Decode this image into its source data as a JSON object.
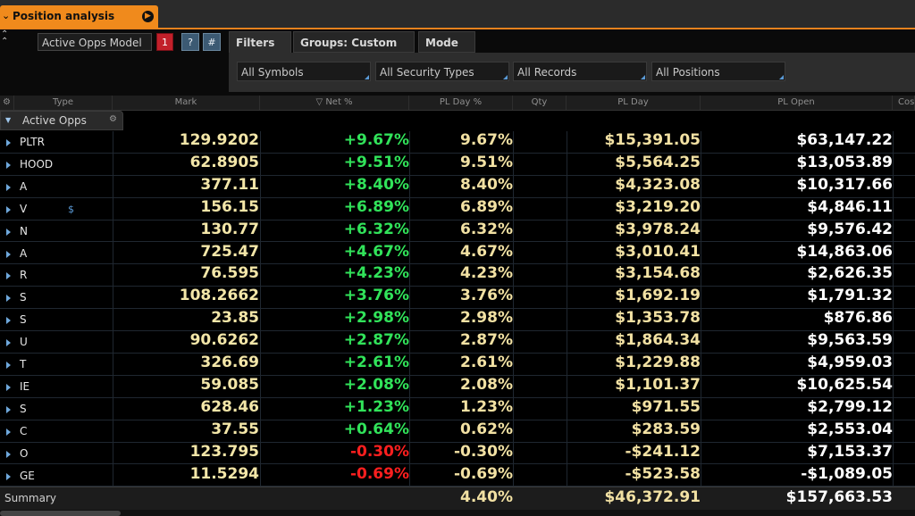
{
  "window": {
    "title": "Position analysis"
  },
  "toolbar": {
    "model_label": "Active Opps Model",
    "model_number": "1",
    "help_label": "?",
    "hash_label": "#"
  },
  "filter_tabs": [
    "Filters",
    "Groups: Custom",
    "Mode"
  ],
  "filters": [
    "All Symbols",
    "All Security Types",
    "All Records",
    "All Positions"
  ],
  "columns": [
    "Type",
    "Mark",
    "Net %",
    "PL Day %",
    "Qty",
    "PL Day",
    "PL Open",
    "Cos"
  ],
  "sort_indicator": "▽",
  "group": {
    "name": "Active Opps"
  },
  "dollar_marker": "$",
  "rows": [
    {
      "symbol": "PLTR",
      "mark": "129.9202",
      "net": "+9.67%",
      "pl_day_pct": "9.67%",
      "pl_day": "$15,391.05",
      "pl_open": "$63,147.22",
      "dir": "pos"
    },
    {
      "symbol": "HOOD",
      "mark": "62.8905",
      "net": "+9.51%",
      "pl_day_pct": "9.51%",
      "pl_day": "$5,564.25",
      "pl_open": "$13,053.89",
      "dir": "pos"
    },
    {
      "symbol": "A",
      "mark": "377.11",
      "net": "+8.40%",
      "pl_day_pct": "8.40%",
      "pl_day": "$4,323.08",
      "pl_open": "$10,317.66",
      "dir": "pos"
    },
    {
      "symbol": "V",
      "mark": "156.15",
      "net": "+6.89%",
      "pl_day_pct": "6.89%",
      "pl_day": "$3,219.20",
      "pl_open": "$4,846.11",
      "dir": "pos"
    },
    {
      "symbol": "N",
      "mark": "130.77",
      "net": "+6.32%",
      "pl_day_pct": "6.32%",
      "pl_day": "$3,978.24",
      "pl_open": "$9,576.42",
      "dir": "pos"
    },
    {
      "symbol": "A",
      "mark": "725.47",
      "net": "+4.67%",
      "pl_day_pct": "4.67%",
      "pl_day": "$3,010.41",
      "pl_open": "$14,863.06",
      "dir": "pos"
    },
    {
      "symbol": "R",
      "mark": "76.595",
      "net": "+4.23%",
      "pl_day_pct": "4.23%",
      "pl_day": "$3,154.68",
      "pl_open": "$2,626.35",
      "dir": "pos"
    },
    {
      "symbol": "S",
      "mark": "108.2662",
      "net": "+3.76%",
      "pl_day_pct": "3.76%",
      "pl_day": "$1,692.19",
      "pl_open": "$1,791.32",
      "dir": "pos"
    },
    {
      "symbol": "S",
      "mark": "23.85",
      "net": "+2.98%",
      "pl_day_pct": "2.98%",
      "pl_day": "$1,353.78",
      "pl_open": "$876.86",
      "dir": "pos"
    },
    {
      "symbol": "U",
      "mark": "90.6262",
      "net": "+2.87%",
      "pl_day_pct": "2.87%",
      "pl_day": "$1,864.34",
      "pl_open": "$9,563.59",
      "dir": "pos"
    },
    {
      "symbol": "T",
      "mark": "326.69",
      "net": "+2.61%",
      "pl_day_pct": "2.61%",
      "pl_day": "$1,229.88",
      "pl_open": "$4,959.03",
      "dir": "pos"
    },
    {
      "symbol": "IE",
      "mark": "59.085",
      "net": "+2.08%",
      "pl_day_pct": "2.08%",
      "pl_day": "$1,101.37",
      "pl_open": "$10,625.54",
      "dir": "pos"
    },
    {
      "symbol": "S",
      "mark": "628.46",
      "net": "+1.23%",
      "pl_day_pct": "1.23%",
      "pl_day": "$971.55",
      "pl_open": "$2,799.12",
      "dir": "pos"
    },
    {
      "symbol": "C",
      "mark": "37.55",
      "net": "+0.64%",
      "pl_day_pct": "0.62%",
      "pl_day": "$283.59",
      "pl_open": "$2,553.04",
      "dir": "pos"
    },
    {
      "symbol": "O",
      "mark": "123.795",
      "net": "-0.30%",
      "pl_day_pct": "-0.30%",
      "pl_day": "-$241.12",
      "pl_open": "$7,153.37",
      "dir": "neg"
    },
    {
      "symbol": "GE",
      "mark": "11.5294",
      "net": "-0.69%",
      "pl_day_pct": "-0.69%",
      "pl_day": "-$523.58",
      "pl_open": "-$1,089.05",
      "dir": "neg"
    }
  ],
  "summary": {
    "label": "Summary",
    "pl_day_pct": "4.40%",
    "pl_day": "$46,372.91",
    "pl_open": "$157,663.53"
  },
  "colors": {
    "accent": "#f08a1c",
    "positive": "#31e35a",
    "negative": "#ff1f1f",
    "mark": "#f3e6a8"
  }
}
